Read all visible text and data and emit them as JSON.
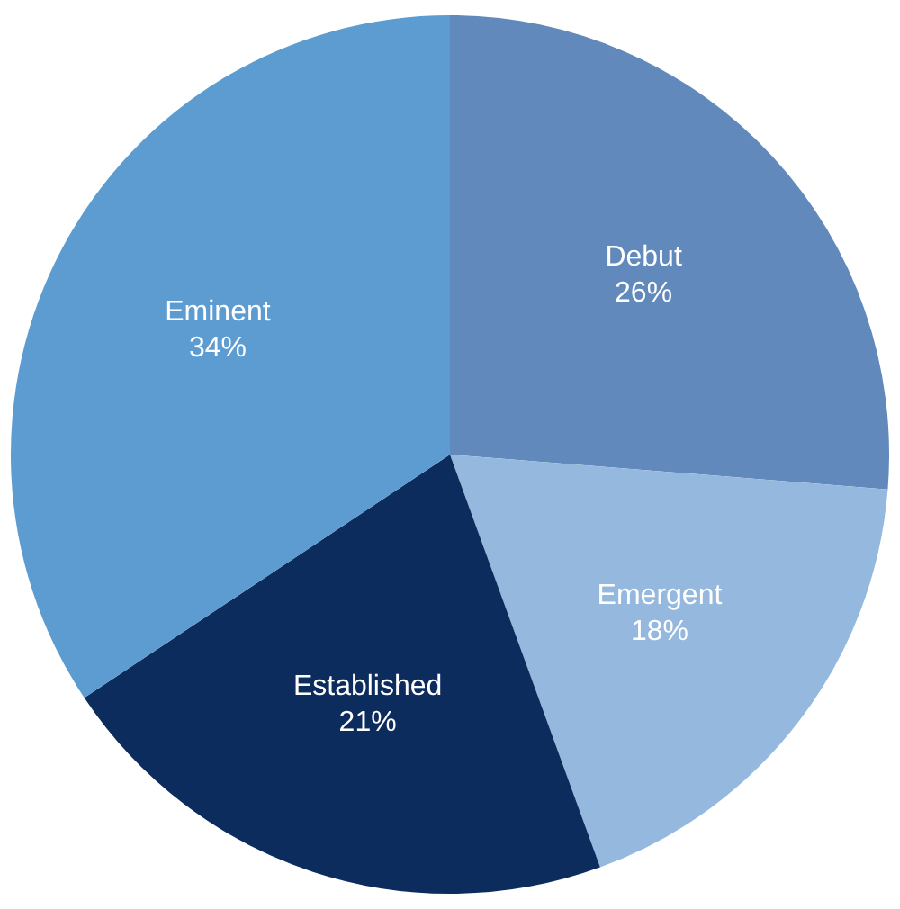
{
  "chart_data": {
    "type": "pie",
    "categories": [
      "Debut",
      "Emergent",
      "Established",
      "Eminent"
    ],
    "values": [
      26,
      18,
      21,
      34
    ],
    "value_labels": [
      "26%",
      "18%",
      "21%",
      "34%"
    ],
    "colors": [
      "#6189bc",
      "#95b9de",
      "#0c2c5e",
      "#5c9cd1"
    ],
    "legend": false
  }
}
